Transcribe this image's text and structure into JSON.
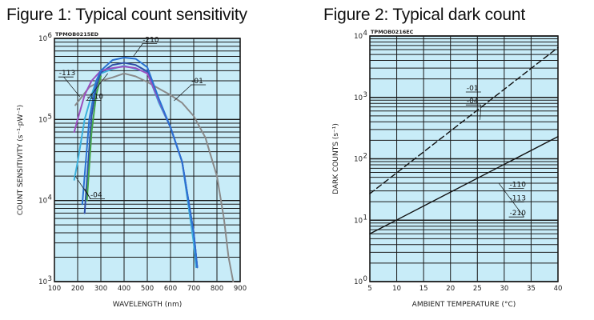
{
  "chart_data": [
    {
      "type": "line",
      "title": "Figure 1: Typical count sensitivity",
      "code": "TPMOB0215ED",
      "xlabel": "WAVELENGTH (nm)",
      "ylabel": "COUNT SENSITIVITY (s⁻¹·pW⁻¹)",
      "xlim": [
        100,
        900
      ],
      "ylim": [
        1000,
        1000000
      ],
      "yscale": "log",
      "grid": true,
      "background": "#c8ecf8",
      "xticks": [
        "100",
        "200",
        "300",
        "400",
        "500",
        "600",
        "700",
        "800",
        "900"
      ],
      "yticks": [
        {
          "value": 1000,
          "base": "10",
          "exp": "3"
        },
        {
          "value": 10000,
          "base": "10",
          "exp": "4"
        },
        {
          "value": 100000,
          "base": "10",
          "exp": "5"
        },
        {
          "value": 1000000,
          "base": "10",
          "exp": "6"
        }
      ],
      "series": [
        {
          "name": "-01",
          "color": "#8a8a8a",
          "x": [
            190,
            250,
            300,
            350,
            400,
            450,
            500,
            550,
            600,
            650,
            700,
            750,
            800,
            830,
            850,
            870
          ],
          "y": [
            150000,
            250000,
            300000,
            330000,
            370000,
            340000,
            290000,
            240000,
            200000,
            160000,
            110000,
            60000,
            20000,
            6000,
            2000,
            1000
          ]
        },
        {
          "name": "-04",
          "color": "#3cb0dc",
          "x": [
            185,
            200,
            230,
            260,
            280,
            300,
            350,
            400,
            450,
            500,
            550,
            600,
            650,
            700,
            710
          ],
          "y": [
            18000,
            30000,
            100000,
            200000,
            300000,
            370000,
            420000,
            460000,
            420000,
            380000,
            160000,
            80000,
            30000,
            3000,
            1500
          ]
        },
        {
          "name": "-110",
          "color": "#2f4fa8",
          "x": [
            230,
            260,
            280,
            300,
            350,
            400,
            450,
            500,
            550,
            600,
            650,
            700,
            715
          ],
          "y": [
            7000,
            110000,
            250000,
            380000,
            470000,
            500000,
            470000,
            390000,
            170000,
            80000,
            30000,
            4000,
            1500
          ]
        },
        {
          "name": "-113",
          "color": "#9a4fc0",
          "x": [
            185,
            200,
            230,
            260,
            300,
            350,
            400,
            450,
            500,
            550,
            600,
            650,
            700,
            715
          ],
          "y": [
            70000,
            100000,
            200000,
            300000,
            400000,
            430000,
            450000,
            430000,
            370000,
            170000,
            80000,
            30000,
            4000,
            1500
          ]
        },
        {
          "name": "-210",
          "color": "#2a72d2",
          "x": [
            220,
            250,
            280,
            300,
            350,
            400,
            450,
            500,
            550,
            600,
            650,
            700,
            715
          ],
          "y": [
            9000,
            100000,
            300000,
            400000,
            540000,
            580000,
            560000,
            440000,
            180000,
            80000,
            30000,
            4000,
            1500
          ]
        },
        {
          "name": "",
          "color": "#46a64a",
          "x": [
            240,
            260,
            280,
            300
          ],
          "y": [
            10000,
            70000,
            200000,
            340000
          ]
        }
      ],
      "annotations": [
        {
          "text": "-210",
          "x": 480,
          "y": 900000
        },
        {
          "text": "-113",
          "x": 120,
          "y": 350000
        },
        {
          "text": "-01",
          "x": 690,
          "y": 280000
        },
        {
          "text": "-110",
          "x": 240,
          "y": 180000
        },
        {
          "text": "-04",
          "x": 255,
          "y": 11000
        }
      ]
    },
    {
      "type": "line",
      "title": "Figure 2: Typical dark count",
      "code": "TPMOB0216EC",
      "xlabel": "AMBIENT TEMPERATURE (°C)",
      "ylabel": "DARK COUNTS (s⁻¹)",
      "xlim": [
        5,
        40
      ],
      "ylim": [
        1,
        10000
      ],
      "yscale": "log",
      "grid": true,
      "background": "#c8ecf8",
      "xticks": [
        "5",
        "10",
        "15",
        "20",
        "25",
        "30",
        "35",
        "40"
      ],
      "yticks": [
        {
          "value": 1,
          "base": "10",
          "exp": "0"
        },
        {
          "value": 10,
          "base": "10",
          "exp": "1"
        },
        {
          "value": 100,
          "base": "10",
          "exp": "2"
        },
        {
          "value": 1000,
          "base": "10",
          "exp": "3"
        },
        {
          "value": 10000,
          "base": "10",
          "exp": "4"
        }
      ],
      "series": [
        {
          "name": "-01 -04",
          "style": "dashed",
          "color": "#111111",
          "x": [
            5,
            40
          ],
          "y": [
            27,
            6500
          ]
        },
        {
          "name": "-110 -113 -210",
          "style": "solid",
          "color": "#111111",
          "x": [
            5,
            40
          ],
          "y": [
            6,
            230
          ]
        }
      ],
      "annotations": [
        {
          "text": "-01",
          "x": 23,
          "y": 1300
        },
        {
          "text": "-04",
          "x": 23,
          "y": 800
        },
        {
          "text": "-110",
          "x": 31,
          "y": 35
        },
        {
          "text": "-113",
          "x": 31,
          "y": 21
        },
        {
          "text": "-210",
          "x": 31,
          "y": 12
        }
      ]
    }
  ]
}
